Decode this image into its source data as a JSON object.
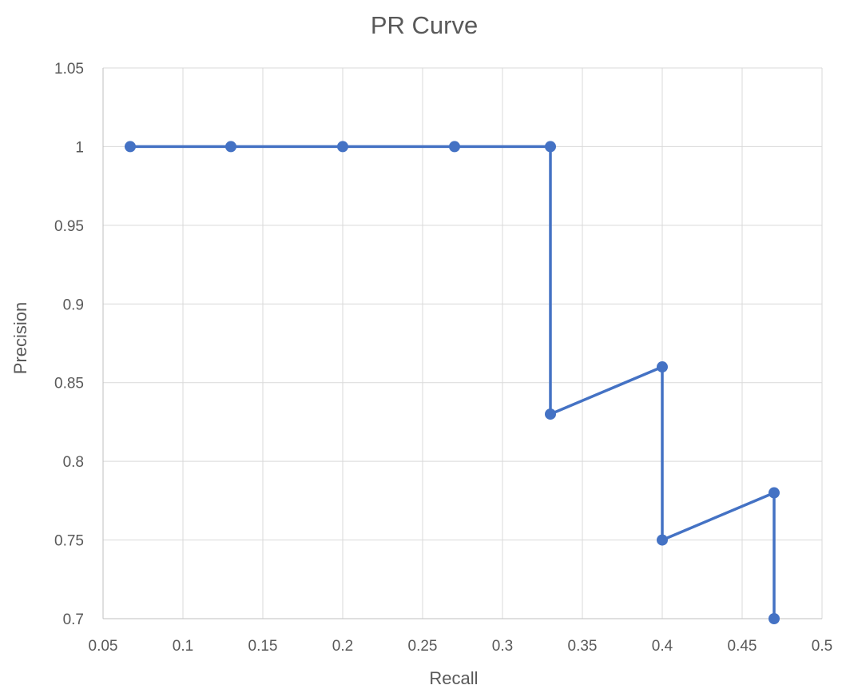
{
  "chart_data": {
    "type": "line",
    "title": "PR Curve",
    "xlabel": "Recall",
    "ylabel": "Precision",
    "xlim": [
      0.05,
      0.5
    ],
    "ylim": [
      0.7,
      1.05
    ],
    "xticks": [
      "0.05",
      "0.1",
      "0.15",
      "0.2",
      "0.25",
      "0.3",
      "0.35",
      "0.4",
      "0.45",
      "0.5"
    ],
    "yticks": [
      "0.7",
      "0.75",
      "0.8",
      "0.85",
      "0.9",
      "0.95",
      "1",
      "1.05"
    ],
    "grid": true,
    "legend": "none",
    "series": [
      {
        "color": "#4472c4",
        "points": [
          {
            "x": 0.067,
            "y": 1.0
          },
          {
            "x": 0.13,
            "y": 1.0
          },
          {
            "x": 0.2,
            "y": 1.0
          },
          {
            "x": 0.27,
            "y": 1.0
          },
          {
            "x": 0.33,
            "y": 1.0
          },
          {
            "x": 0.33,
            "y": 0.83
          },
          {
            "x": 0.4,
            "y": 0.86
          },
          {
            "x": 0.4,
            "y": 0.75
          },
          {
            "x": 0.47,
            "y": 0.78
          },
          {
            "x": 0.47,
            "y": 0.7
          }
        ]
      }
    ]
  }
}
